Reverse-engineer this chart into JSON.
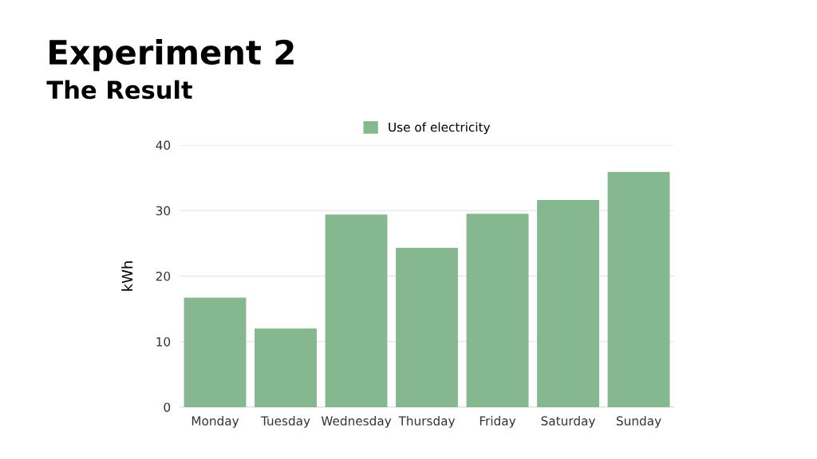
{
  "chart_data": {
    "type": "bar",
    "title": "Experiment 2",
    "subtitle": "The Result",
    "ylabel": "kWh",
    "categories": [
      "Monday",
      "Tuesday",
      "Wednesday",
      "Thursday",
      "Friday",
      "Saturday",
      "Sunday"
    ],
    "series": [
      {
        "name": "Use of electricity",
        "color": "#86b88f",
        "values": [
          16.7,
          12.0,
          29.4,
          24.3,
          29.5,
          31.6,
          35.9
        ]
      }
    ],
    "ylim": [
      0,
      40
    ],
    "yticks": [
      0,
      10,
      20,
      30,
      40
    ],
    "grid": "y",
    "legend": "top"
  }
}
